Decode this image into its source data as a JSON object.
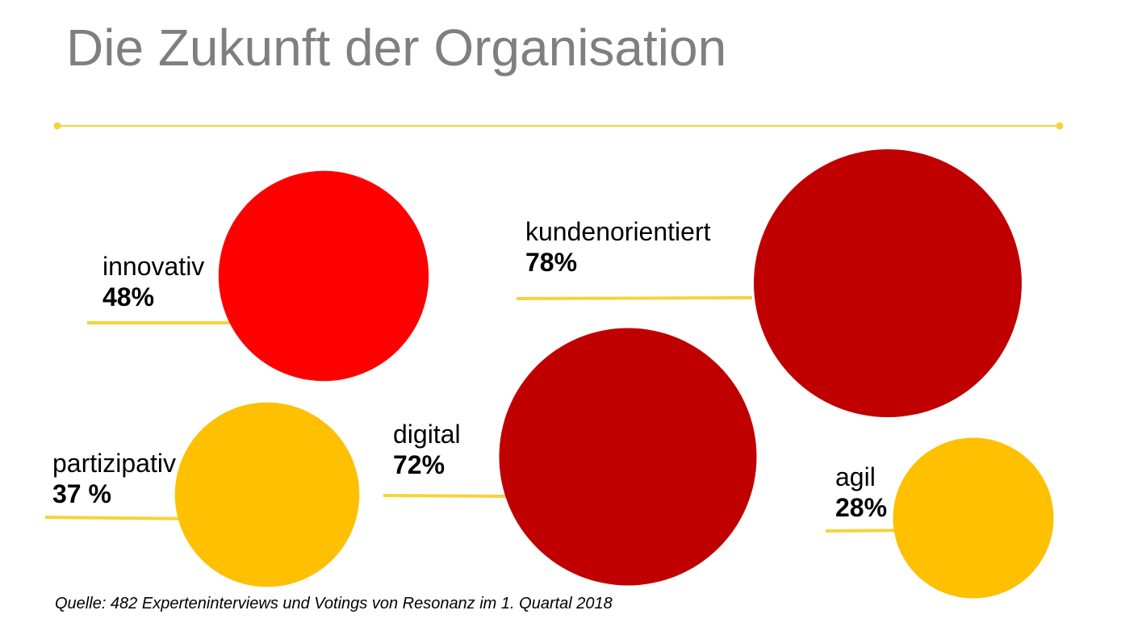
{
  "title": "Die Zukunft der Organisation",
  "source": "Quelle: 482 Experteninterviews und Votings von Resonanz im 1. Quartal 2018",
  "colors": {
    "title": "#7f7f7f",
    "divider": "#f5d33b",
    "leader": "#f5d33b",
    "bright_red": "#ff0000",
    "dark_red": "#c00000",
    "amber": "#fec000"
  },
  "chart_data": {
    "type": "bubble",
    "legend": "none",
    "grid": false,
    "unit": "%",
    "items": [
      {
        "name": "innovativ",
        "value_label": "48%",
        "value": 48,
        "color": "#ff0000"
      },
      {
        "name": "kundenorientiert",
        "value_label": "78%",
        "value": 78,
        "color": "#c00000"
      },
      {
        "name": "partizipativ",
        "value_label": "37 %",
        "value": 37,
        "color": "#fec000"
      },
      {
        "name": "digital",
        "value_label": "72%",
        "value": 72,
        "color": "#c00000"
      },
      {
        "name": "agil",
        "value_label": "28%",
        "value": 28,
        "color": "#fec000"
      }
    ]
  }
}
